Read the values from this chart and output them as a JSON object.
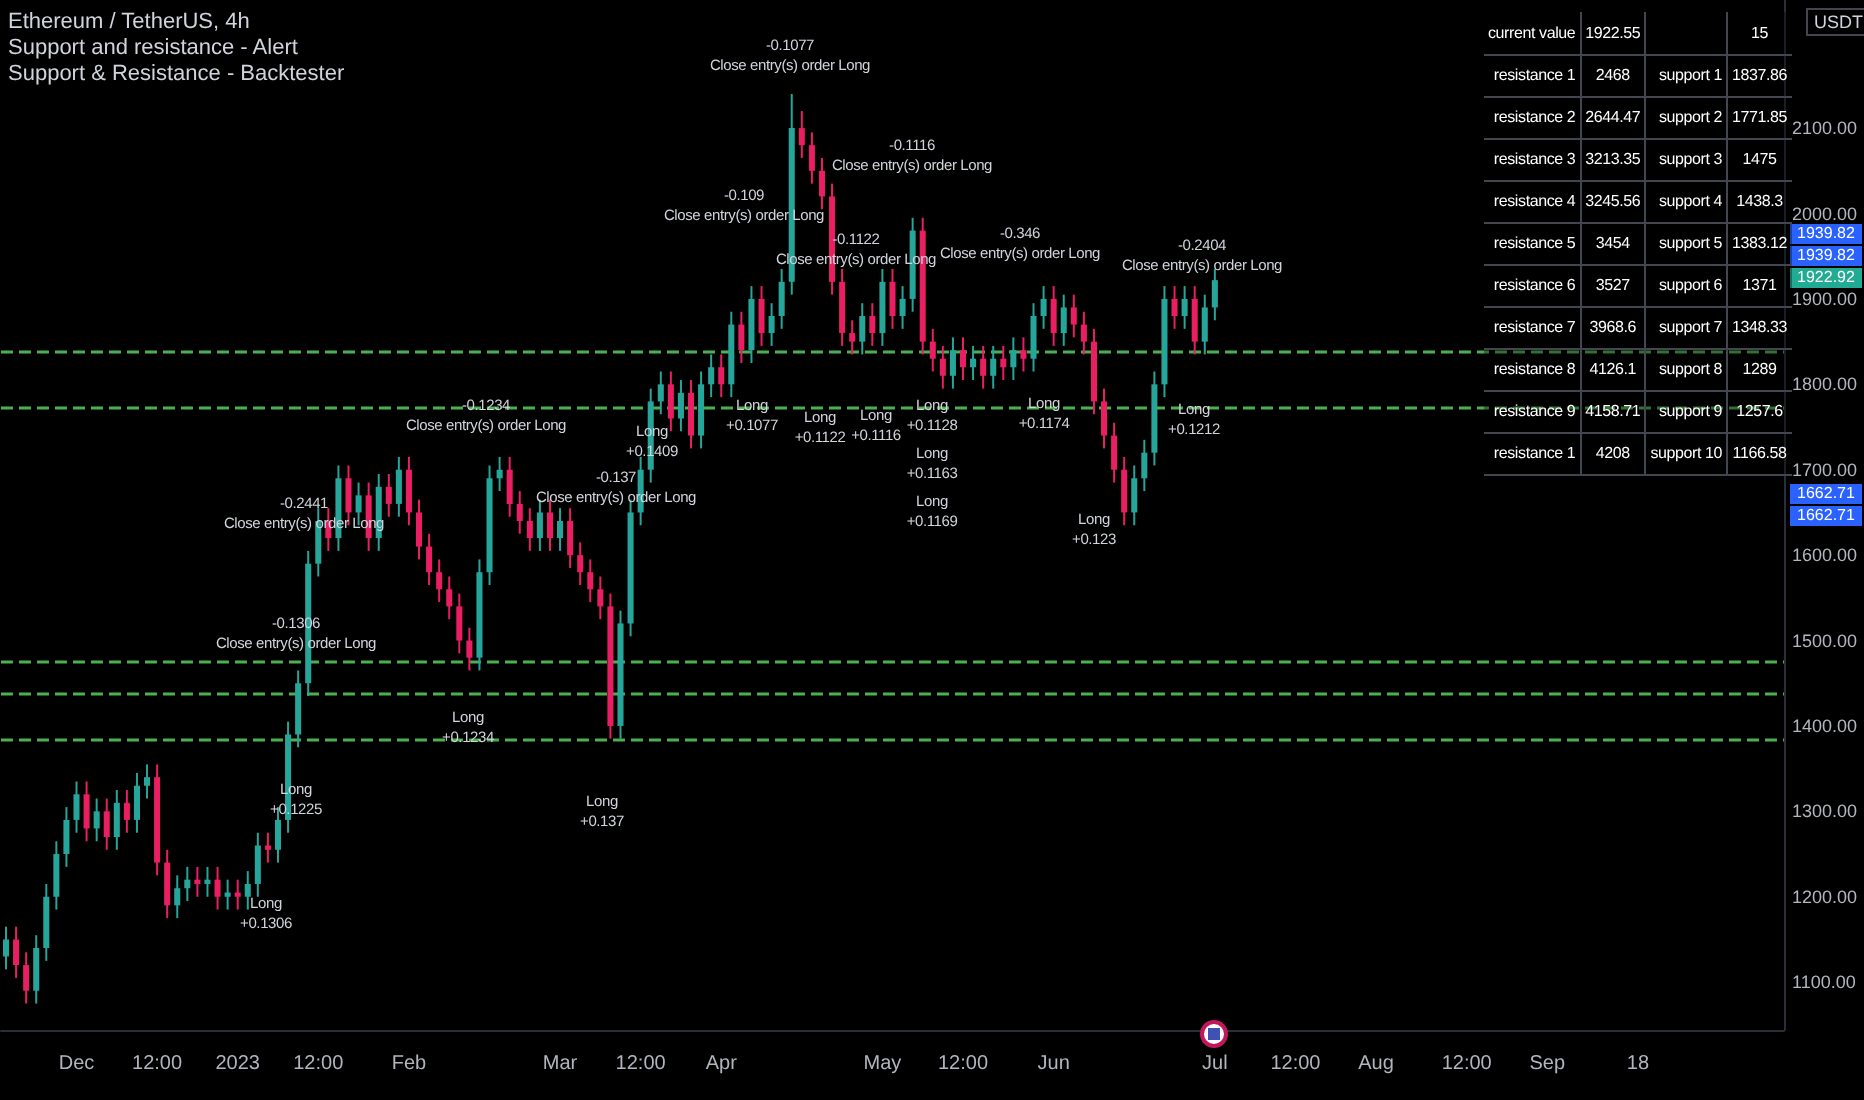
{
  "chart_data": [
    {
      "type": "candlestick",
      "title": "Ethereum / TetherUS, 4h",
      "subtitle": "Support and resistance - Alert\nSupport & Resistance - Backtester",
      "categories": [
        null,
        null,
        null,
        null,
        null,
        null,
        null,
        "Dec",
        null,
        null,
        null,
        null,
        null,
        null,
        null,
        "12:00",
        null,
        null,
        null,
        null,
        null,
        null,
        null,
        "2023",
        null,
        null,
        null,
        null,
        null,
        null,
        null,
        "12:00",
        null,
        null,
        null,
        null,
        null,
        null,
        null,
        null,
        "Feb",
        null,
        null,
        null,
        null,
        null,
        null,
        null,
        null,
        null,
        null,
        null,
        null,
        null,
        null,
        "Mar",
        null,
        null,
        null,
        null,
        null,
        null,
        null,
        "12:00",
        null,
        null,
        null,
        null,
        null,
        null,
        null,
        "Apr",
        null,
        null,
        null,
        null,
        null,
        null,
        null,
        null,
        null,
        null,
        null,
        null,
        null,
        null,
        null,
        "May",
        null,
        null,
        null,
        null,
        null,
        null,
        null,
        "12:00",
        null,
        null,
        null,
        null,
        null,
        null,
        null,
        null,
        "Jun",
        null,
        null,
        null,
        null,
        null,
        null,
        null,
        null,
        null,
        null,
        null,
        null,
        null,
        null,
        null,
        "Jul",
        null,
        null,
        null,
        null,
        null,
        null,
        null,
        "12:00",
        null,
        null,
        null,
        null,
        null,
        null,
        null,
        "Aug",
        null,
        null,
        null,
        null,
        null,
        null,
        null,
        null,
        "12:00",
        null,
        null,
        null,
        null,
        null,
        null,
        null,
        "Sep",
        null,
        null,
        null,
        null,
        null,
        null,
        null,
        null,
        "18",
        null,
        null,
        null,
        null,
        null,
        null,
        null,
        null,
        null,
        null,
        null,
        null,
        null,
        null
      ],
      "ohlc": [
        [
          1130,
          1165,
          1115,
          1150
        ],
        [
          1150,
          1165,
          1105,
          1120
        ],
        [
          1120,
          1135,
          1075,
          1090
        ],
        [
          1090,
          1155,
          1075,
          1140
        ],
        [
          1140,
          1215,
          1125,
          1200
        ],
        [
          1200,
          1265,
          1185,
          1250
        ],
        [
          1250,
          1305,
          1235,
          1290
        ],
        [
          1290,
          1335,
          1275,
          1320
        ],
        [
          1320,
          1335,
          1265,
          1280
        ],
        [
          1280,
          1315,
          1265,
          1300
        ],
        [
          1300,
          1315,
          1255,
          1270
        ],
        [
          1270,
          1325,
          1255,
          1310
        ],
        [
          1310,
          1325,
          1275,
          1290
        ],
        [
          1290,
          1345,
          1275,
          1330
        ],
        [
          1330,
          1355,
          1315,
          1340
        ],
        [
          1340,
          1355,
          1225,
          1240
        ],
        [
          1240,
          1255,
          1175,
          1190
        ],
        [
          1190,
          1225,
          1175,
          1210
        ],
        [
          1210,
          1235,
          1195,
          1220
        ],
        [
          1220,
          1235,
          1200,
          1215
        ],
        [
          1215,
          1235,
          1200,
          1220
        ],
        [
          1220,
          1235,
          1185,
          1200
        ],
        [
          1200,
          1220,
          1185,
          1205
        ],
        [
          1205,
          1220,
          1185,
          1200
        ],
        [
          1200,
          1230,
          1185,
          1215
        ],
        [
          1215,
          1275,
          1200,
          1260
        ],
        [
          1260,
          1275,
          1240,
          1255
        ],
        [
          1255,
          1305,
          1240,
          1290
        ],
        [
          1290,
          1405,
          1275,
          1390
        ],
        [
          1390,
          1465,
          1375,
          1450
        ],
        [
          1450,
          1605,
          1435,
          1590
        ],
        [
          1590,
          1655,
          1575,
          1640
        ],
        [
          1640,
          1655,
          1605,
          1620
        ],
        [
          1620,
          1705,
          1605,
          1690
        ],
        [
          1690,
          1705,
          1635,
          1650
        ],
        [
          1650,
          1685,
          1635,
          1670
        ],
        [
          1670,
          1685,
          1605,
          1620
        ],
        [
          1620,
          1695,
          1605,
          1680
        ],
        [
          1680,
          1695,
          1645,
          1660
        ],
        [
          1660,
          1715,
          1645,
          1700
        ],
        [
          1700,
          1715,
          1635,
          1650
        ],
        [
          1650,
          1665,
          1595,
          1610
        ],
        [
          1610,
          1625,
          1565,
          1580
        ],
        [
          1580,
          1595,
          1545,
          1560
        ],
        [
          1560,
          1575,
          1525,
          1540
        ],
        [
          1540,
          1555,
          1485,
          1500
        ],
        [
          1500,
          1515,
          1465,
          1480
        ],
        [
          1480,
          1595,
          1465,
          1580
        ],
        [
          1580,
          1705,
          1565,
          1690
        ],
        [
          1690,
          1715,
          1675,
          1700
        ],
        [
          1700,
          1715,
          1645,
          1660
        ],
        [
          1660,
          1675,
          1625,
          1640
        ],
        [
          1640,
          1655,
          1605,
          1620
        ],
        [
          1620,
          1665,
          1605,
          1650
        ],
        [
          1650,
          1665,
          1605,
          1620
        ],
        [
          1620,
          1655,
          1605,
          1640
        ],
        [
          1640,
          1655,
          1585,
          1600
        ],
        [
          1600,
          1615,
          1565,
          1580
        ],
        [
          1580,
          1595,
          1545,
          1560
        ],
        [
          1560,
          1575,
          1525,
          1540
        ],
        [
          1540,
          1555,
          1385,
          1400
        ],
        [
          1400,
          1535,
          1385,
          1520
        ],
        [
          1520,
          1665,
          1505,
          1650
        ],
        [
          1650,
          1715,
          1635,
          1700
        ],
        [
          1700,
          1795,
          1685,
          1780
        ],
        [
          1780,
          1815,
          1765,
          1800
        ],
        [
          1800,
          1815,
          1745,
          1760
        ],
        [
          1760,
          1805,
          1745,
          1790
        ],
        [
          1790,
          1805,
          1725,
          1740
        ],
        [
          1740,
          1815,
          1725,
          1800
        ],
        [
          1800,
          1835,
          1785,
          1820
        ],
        [
          1820,
          1835,
          1785,
          1800
        ],
        [
          1800,
          1885,
          1785,
          1870
        ],
        [
          1870,
          1885,
          1825,
          1840
        ],
        [
          1840,
          1915,
          1825,
          1900
        ],
        [
          1900,
          1915,
          1845,
          1860
        ],
        [
          1860,
          1895,
          1845,
          1880
        ],
        [
          1880,
          1935,
          1865,
          1920
        ],
        [
          1920,
          2140,
          1905,
          2100
        ],
        [
          2100,
          2120,
          2065,
          2080
        ],
        [
          2080,
          2095,
          2035,
          2050
        ],
        [
          2050,
          2065,
          2005,
          2020
        ],
        [
          2020,
          2035,
          1905,
          1920
        ],
        [
          1920,
          1935,
          1845,
          1860
        ],
        [
          1860,
          1875,
          1835,
          1850
        ],
        [
          1850,
          1895,
          1835,
          1880
        ],
        [
          1880,
          1895,
          1845,
          1860
        ],
        [
          1860,
          1935,
          1845,
          1920
        ],
        [
          1920,
          1935,
          1865,
          1880
        ],
        [
          1880,
          1915,
          1865,
          1900
        ],
        [
          1900,
          1995,
          1885,
          1980
        ],
        [
          1980,
          1995,
          1835,
          1850
        ],
        [
          1850,
          1865,
          1815,
          1830
        ],
        [
          1830,
          1845,
          1795,
          1810
        ],
        [
          1810,
          1855,
          1795,
          1840
        ],
        [
          1840,
          1855,
          1805,
          1820
        ],
        [
          1820,
          1845,
          1805,
          1830
        ],
        [
          1830,
          1845,
          1795,
          1810
        ],
        [
          1810,
          1845,
          1795,
          1830
        ],
        [
          1830,
          1845,
          1805,
          1820
        ],
        [
          1820,
          1855,
          1805,
          1840
        ],
        [
          1840,
          1855,
          1815,
          1830
        ],
        [
          1830,
          1895,
          1815,
          1880
        ],
        [
          1880,
          1915,
          1865,
          1900
        ],
        [
          1900,
          1915,
          1845,
          1860
        ],
        [
          1860,
          1905,
          1845,
          1890
        ],
        [
          1890,
          1905,
          1855,
          1870
        ],
        [
          1870,
          1885,
          1835,
          1850
        ],
        [
          1850,
          1865,
          1765,
          1780
        ],
        [
          1780,
          1795,
          1725,
          1740
        ],
        [
          1740,
          1755,
          1685,
          1700
        ],
        [
          1700,
          1715,
          1635,
          1650
        ],
        [
          1650,
          1705,
          1635,
          1690
        ],
        [
          1690,
          1735,
          1675,
          1720
        ],
        [
          1720,
          1815,
          1705,
          1800
        ],
        [
          1800,
          1915,
          1785,
          1900
        ],
        [
          1900,
          1915,
          1865,
          1880
        ],
        [
          1880,
          1915,
          1865,
          1900
        ],
        [
          1900,
          1915,
          1835,
          1850
        ],
        [
          1850,
          1905,
          1835,
          1890
        ],
        [
          1890,
          1935,
          1875,
          1922
        ],
        null,
        null,
        null,
        null,
        null,
        null,
        null,
        null,
        null,
        null,
        null,
        null,
        null,
        null,
        null,
        null,
        null,
        null,
        null,
        null,
        null,
        null,
        null,
        null,
        null,
        null,
        null,
        null,
        null,
        null,
        null,
        null,
        null,
        null,
        null,
        null,
        null,
        null,
        null,
        null,
        null,
        null,
        null,
        null,
        null,
        null,
        null,
        null,
        null,
        null,
        null,
        null,
        null,
        null,
        null,
        null
      ],
      "ylim": [
        1044,
        2250
      ],
      "yticks": [
        {
          "value": 1100,
          "label": "1100.00"
        },
        {
          "value": 1200,
          "label": "1200.00"
        },
        {
          "value": 1300,
          "label": "1300.00"
        },
        {
          "value": 1400,
          "label": "1400.00"
        },
        {
          "value": 1500,
          "label": "1500.00"
        },
        {
          "value": 1600,
          "label": "1600.00"
        },
        {
          "value": 1700,
          "label": "1700.00"
        },
        {
          "value": 1800,
          "label": "1800.00"
        },
        {
          "value": 1900,
          "label": "1900.00"
        },
        {
          "value": 2000,
          "label": "2000.00"
        },
        {
          "value": 2100,
          "label": "2100.00"
        }
      ],
      "ref_lines": [
        {
          "axis": "y",
          "value": 1837.86,
          "color": "#4caf50",
          "line_style": "dashed"
        },
        {
          "axis": "y",
          "value": 1771.85,
          "color": "#4caf50",
          "line_style": "dashed"
        },
        {
          "axis": "y",
          "value": 1475,
          "color": "#4caf50",
          "line_style": "dashed"
        },
        {
          "axis": "y",
          "value": 1438.3,
          "color": "#4caf50",
          "line_style": "dashed"
        },
        {
          "axis": "y",
          "value": 1383.12,
          "color": "#4caf50",
          "line_style": "dashed"
        }
      ],
      "annotations": [
        "USDT",
        "-0.1077\nClose entry(s) order Long",
        "-0.109\nClose entry(s) order Long",
        "-0.1116\nClose entry(s) order Long",
        "-0.1122\nClose entry(s) order Long",
        "-0.346\nClose entry(s) order Long",
        "-0.2404\nClose entry(s) order Long",
        "-0.1234\nClose entry(s) order Long",
        "-0.137\nClose entry(s) order Long",
        "-0.2441\nClose entry(s) order Long",
        "-0.1306\nClose entry(s) order Long",
        "Long\n+0.1077",
        "Long\n+0.1122",
        "Long\n+0.1116",
        "Long\n+0.1128",
        "Long\n+0.1163",
        "Long\n+0.1169",
        "Long\n+0.1174",
        "Long\n+0.123",
        "Long\n+0.1212",
        "Long\n+0.1234",
        "Long\n+0.137",
        "Long\n+0.1306",
        "Long\n+0.1225",
        "Long\n+0.1409",
        "1939.82",
        "1939.82",
        "1922.92",
        "1662.71",
        "1662.71"
      ]
    },
    {
      "type": "other",
      "annotations": [
        "current value",
        "1922.55",
        null,
        "15",
        "resistance 1",
        "2468",
        "support 1",
        "1837.86",
        "resistance 2",
        "2644.47",
        "support 2",
        "1771.85",
        "resistance 3",
        "3213.35",
        "support 3",
        "1475",
        "resistance 4",
        "3245.56",
        "support 4",
        "1438.3",
        "resistance 5",
        "3454",
        "support 5",
        "1383.12",
        "resistance 6",
        "3527",
        "support 6",
        "1371",
        "resistance 7",
        "3968.6",
        "support 7",
        "1348.33",
        "resistance 8",
        "4126.1",
        "support 8",
        "1289",
        "resistance 9",
        "4158.71",
        "support 9",
        "1257.6",
        "resistance 1",
        "4208",
        "support 10",
        "1166.58"
      ]
    }
  ]
}
